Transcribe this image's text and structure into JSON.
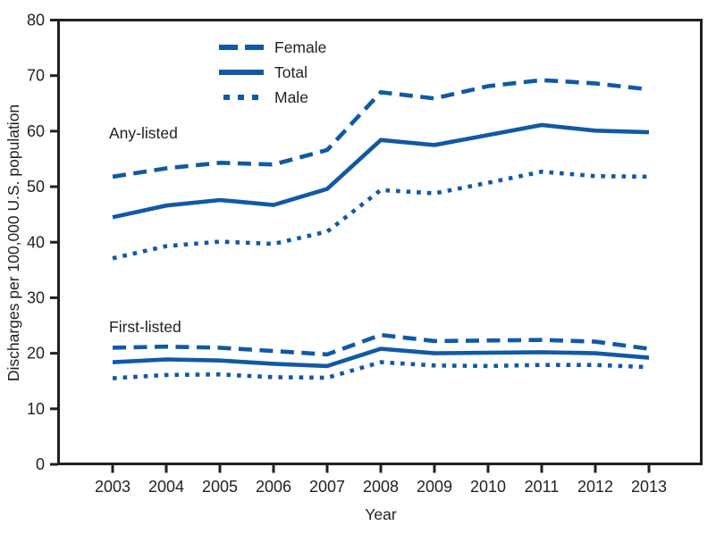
{
  "figure": {
    "y_axis_title": "Discharges per 100,000 U.S. population",
    "x_axis_title": "Year"
  },
  "legend": {
    "items": [
      {
        "label": "Female",
        "style": "dashed"
      },
      {
        "label": "Total",
        "style": "solid"
      },
      {
        "label": "Male",
        "style": "dotted"
      }
    ]
  },
  "annotations": {
    "any_listed": "Any-listed",
    "first_listed": "First-listed"
  },
  "colors": {
    "line_blue": "#1159A6",
    "axis_ink": "#231F20"
  },
  "chart_data": {
    "type": "line",
    "title": "",
    "xlabel": "Year",
    "ylabel": "Discharges per 100,000 U.S. population",
    "x": [
      2003,
      2004,
      2005,
      2006,
      2007,
      2008,
      2009,
      2010,
      2011,
      2012,
      2013
    ],
    "ylim": [
      0,
      80
    ],
    "yticks": [
      0,
      10,
      20,
      30,
      40,
      50,
      60,
      70,
      80
    ],
    "grid": false,
    "legend_position": "upper-left-inside",
    "series": [
      {
        "name": "Any-listed Female",
        "group": "Any-listed",
        "sex": "Female",
        "style": "dashed",
        "values": [
          51.8,
          53.3,
          54.3,
          54.0,
          56.6,
          67.0,
          65.9,
          68.1,
          69.2,
          68.6,
          67.5
        ]
      },
      {
        "name": "Any-listed Total",
        "group": "Any-listed",
        "sex": "Total",
        "style": "solid",
        "values": [
          44.5,
          46.6,
          47.6,
          46.7,
          49.6,
          58.4,
          57.5,
          59.3,
          61.1,
          60.1,
          59.8
        ]
      },
      {
        "name": "Any-listed Male",
        "group": "Any-listed",
        "sex": "Male",
        "style": "dotted",
        "values": [
          37.1,
          39.3,
          40.1,
          39.7,
          41.9,
          49.4,
          48.8,
          50.7,
          52.7,
          51.9,
          51.8
        ]
      },
      {
        "name": "First-listed Female",
        "group": "First-listed",
        "sex": "Female",
        "style": "dashed",
        "values": [
          21.0,
          21.2,
          21.0,
          20.4,
          19.8,
          23.3,
          22.2,
          22.3,
          22.4,
          22.1,
          20.8
        ]
      },
      {
        "name": "First-listed Total",
        "group": "First-listed",
        "sex": "Total",
        "style": "solid",
        "values": [
          18.4,
          18.9,
          18.7,
          18.1,
          17.7,
          20.8,
          20.0,
          20.1,
          20.2,
          20.0,
          19.2
        ]
      },
      {
        "name": "First-listed Male",
        "group": "First-listed",
        "sex": "Male",
        "style": "dotted",
        "values": [
          15.5,
          16.1,
          16.2,
          15.7,
          15.6,
          18.4,
          17.8,
          17.7,
          17.9,
          17.9,
          17.5
        ]
      }
    ]
  }
}
